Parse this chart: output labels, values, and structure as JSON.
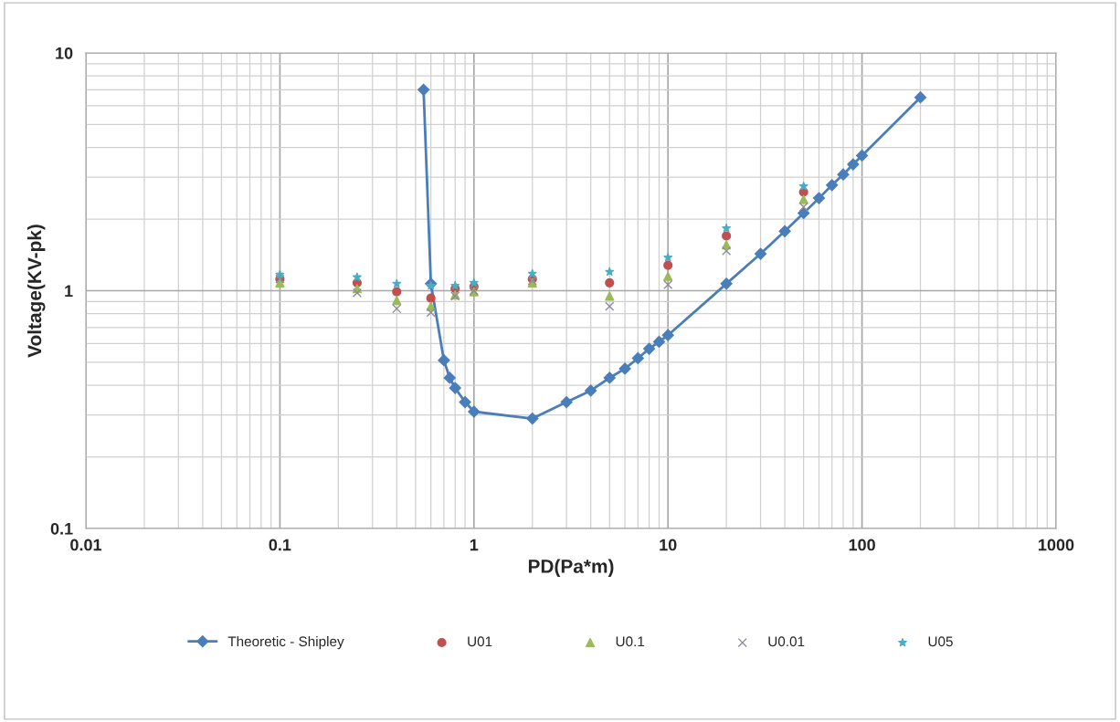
{
  "chart_data": {
    "type": "line",
    "xlabel": "PD(Pa*m)",
    "ylabel": "Voltage(KV-pk)",
    "log": "xy",
    "grid": true,
    "legend": "bottom",
    "xlim": [
      0.01,
      1000
    ],
    "xticks": [
      0.01,
      0.1,
      1,
      10,
      100,
      1000
    ],
    "ylim": [
      0.1,
      10
    ],
    "yticks": [
      0.1,
      1,
      10
    ],
    "series": [
      {
        "name": "Theoretic - Shipley",
        "color": "#4a7ebb",
        "marker": "diamond",
        "line_style": "solid",
        "x": [
          0.55,
          0.6,
          0.7,
          0.75,
          0.8,
          0.9,
          1,
          2,
          3,
          4,
          5,
          6,
          7,
          8,
          9,
          10,
          20,
          30,
          40,
          50,
          60,
          70,
          80,
          90,
          100,
          200
        ],
        "values": [
          7.0,
          1.07,
          0.51,
          0.43,
          0.39,
          0.34,
          0.31,
          0.29,
          0.34,
          0.38,
          0.43,
          0.47,
          0.52,
          0.57,
          0.61,
          0.65,
          1.07,
          1.43,
          1.78,
          2.12,
          2.45,
          2.78,
          3.08,
          3.4,
          3.7,
          6.5
        ]
      },
      {
        "name": "U01",
        "type": "scatter",
        "color": "#c0504d",
        "marker": "circle",
        "x": [
          0.1,
          0.25,
          0.4,
          0.6,
          0.8,
          1,
          2,
          5,
          10,
          20,
          50
        ],
        "values": [
          1.12,
          1.08,
          0.99,
          0.93,
          1.02,
          1.04,
          1.12,
          1.08,
          1.28,
          1.7,
          2.6
        ]
      },
      {
        "name": "U0.1",
        "type": "scatter",
        "color": "#9bbb59",
        "marker": "triangle",
        "x": [
          0.1,
          0.25,
          0.4,
          0.6,
          0.8,
          1,
          2,
          5,
          10,
          20,
          50
        ],
        "values": [
          1.08,
          1.02,
          0.91,
          0.86,
          0.96,
          0.99,
          1.08,
          0.95,
          1.15,
          1.56,
          2.42
        ]
      },
      {
        "name": "U0.01",
        "type": "scatter",
        "color": "#8c8c9c",
        "marker": "cross",
        "x": [
          0.1,
          0.25,
          0.4,
          0.6,
          0.8,
          1,
          2,
          5,
          10,
          20,
          50
        ],
        "values": [
          1.12,
          0.98,
          0.84,
          0.81,
          0.95,
          1.0,
          1.1,
          0.86,
          1.06,
          1.47,
          2.25
        ]
      },
      {
        "name": "U05",
        "type": "scatter",
        "color": "#4bacc6",
        "marker": "star",
        "x": [
          0.1,
          0.25,
          0.4,
          0.6,
          0.8,
          1,
          2,
          5,
          10,
          20,
          50
        ],
        "values": [
          1.17,
          1.14,
          1.07,
          1.05,
          1.05,
          1.08,
          1.18,
          1.2,
          1.38,
          1.83,
          2.75
        ]
      }
    ]
  }
}
